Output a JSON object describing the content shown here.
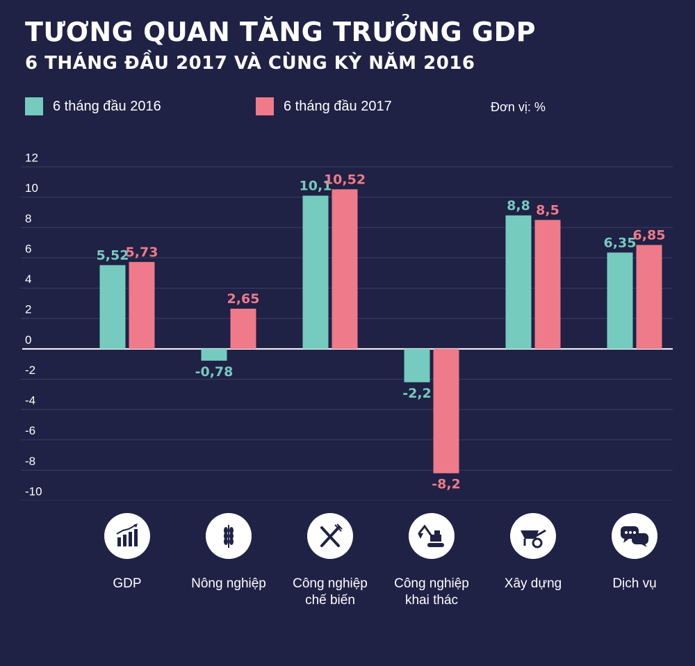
{
  "title": "TƯƠNG QUAN TĂNG TRƯỞNG GDP",
  "subtitle": "6 THÁNG ĐẦU 2017 VÀ CÙNG KỲ NĂM 2016",
  "unit": "Đơn vị: %",
  "colors": {
    "background": "#1f2145",
    "series_2016": "#75cbbe",
    "series_2017": "#ef7a89"
  },
  "chart_data": {
    "type": "bar",
    "categories": [
      "GDP",
      "Nông nghiệp",
      "Công nghiệp\nchế biến",
      "Công nghiệp\nkhai thác",
      "Xây dựng",
      "Dịch vụ"
    ],
    "series": [
      {
        "name": "6 tháng đầu 2016",
        "values": [
          5.52,
          -0.78,
          10.1,
          -2.2,
          8.8,
          6.35
        ],
        "labels": [
          "5,52",
          "-0,78",
          "10,1",
          "-2,2",
          "8,8",
          "6,35"
        ]
      },
      {
        "name": "6 tháng đầu 2017",
        "values": [
          5.73,
          2.65,
          10.52,
          -8.2,
          8.5,
          6.85
        ],
        "labels": [
          "5,73",
          "2,65",
          "10,52",
          "-8,2",
          "8,5",
          "6,85"
        ]
      }
    ],
    "yticks": [
      "12",
      "10",
      "8",
      "6",
      "4",
      "2",
      "0",
      "-2",
      "-4",
      "-6",
      "-8",
      "-10"
    ],
    "ylim": [
      -10,
      12
    ],
    "grid": true,
    "legend": "top-left"
  },
  "icons": [
    "bar-chart-growth-icon",
    "wheat-icon",
    "fork-knife-icon",
    "excavator-icon",
    "wheelbarrow-icon",
    "chat-bubbles-icon"
  ]
}
